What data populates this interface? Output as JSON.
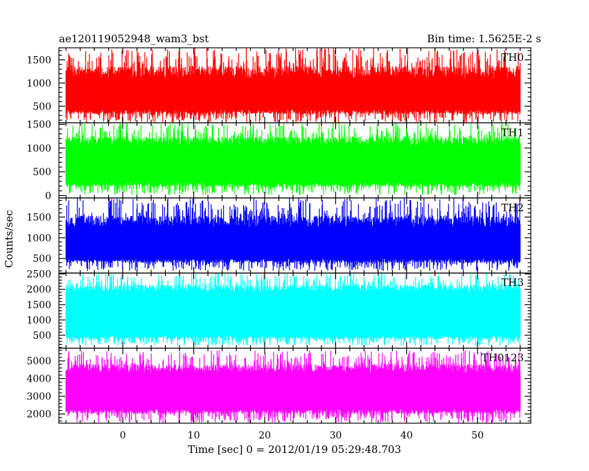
{
  "header": {
    "title": "ae120119052948_wam3_bst",
    "bin_time": "Bin time: 1.5625E-2 s"
  },
  "chart_data": {
    "type": "line",
    "xlabel": "Time [sec] 0 = 2012/01/19 05:29:48.703",
    "ylabel": "Counts/sec",
    "xlim": [
      -9,
      57.5
    ],
    "xticks_major": [
      0,
      10,
      20,
      30,
      40,
      50
    ],
    "xticks_minor_step": 2,
    "data_x_range": [
      -8,
      56
    ],
    "panels": [
      {
        "name": "TH0",
        "color": "#ff0000",
        "ylim": [
          140,
          1760
        ],
        "yticks": [
          500,
          1000,
          1500
        ],
        "yticks_minor_step": 100,
        "band": [
          430,
          1100
        ],
        "spikes": [
          140,
          1760
        ]
      },
      {
        "name": "TH1",
        "color": "#00ff00",
        "ylim": [
          -50,
          1530
        ],
        "yticks": [
          0,
          500,
          1000,
          1500
        ],
        "yticks_minor_step": 100,
        "band": [
          280,
          1050
        ],
        "spikes": [
          10,
          1530
        ]
      },
      {
        "name": "TH2",
        "color": "#0000ff",
        "ylim": [
          150,
          1960
        ],
        "yticks": [
          500,
          1000,
          1500
        ],
        "yticks_minor_step": 100,
        "band": [
          500,
          1250
        ],
        "spikes": [
          200,
          1960
        ]
      },
      {
        "name": "TH3",
        "color": "#00ffff",
        "ylim": [
          80,
          2530
        ],
        "yticks": [
          500,
          1000,
          1500,
          2000,
          2500
        ],
        "yticks_minor_step": 100,
        "band": [
          500,
          1900
        ],
        "spikes": [
          150,
          2530
        ]
      },
      {
        "name": "TH0123",
        "color": "#ff00ff",
        "ylim": [
          1480,
          5720
        ],
        "yticks": [
          2000,
          3000,
          4000,
          5000
        ],
        "yticks_minor_step": 200,
        "band": [
          2300,
          4300
        ],
        "spikes": [
          1500,
          5600
        ]
      }
    ]
  }
}
